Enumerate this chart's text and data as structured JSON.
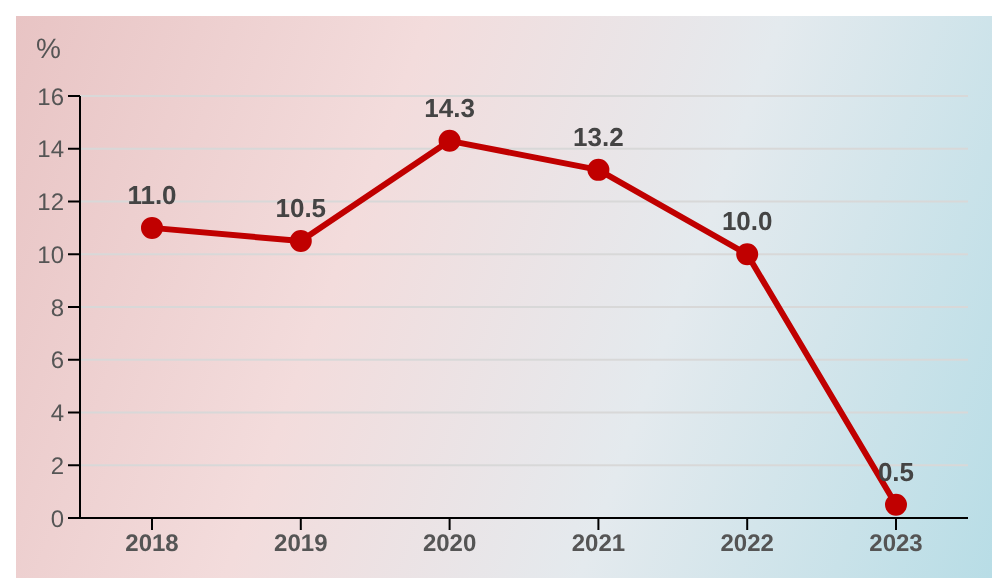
{
  "chart_data": {
    "type": "line",
    "ylabel": "%",
    "categories": [
      "2018",
      "2019",
      "2020",
      "2021",
      "2022",
      "2023"
    ],
    "series": [
      {
        "color": "#c00000",
        "values": [
          11.0,
          10.5,
          14.3,
          13.2,
          10.0,
          0.5
        ],
        "value_labels": [
          "11.0",
          "10.5",
          "14.3",
          "13.2",
          "10.0",
          "0.5"
        ]
      }
    ],
    "ylim": [
      0,
      16
    ],
    "yticks": [
      0,
      2,
      4,
      6,
      8,
      10,
      12,
      14,
      16
    ],
    "grid": "y",
    "marker": "circle",
    "line_style": "solid",
    "legend": false
  }
}
